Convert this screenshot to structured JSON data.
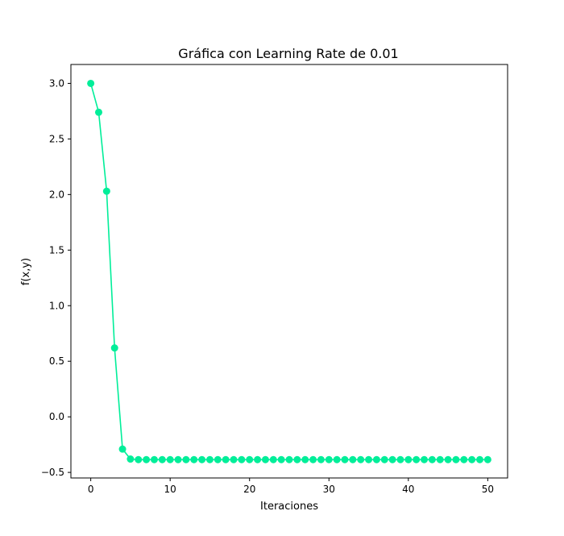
{
  "chart_data": {
    "type": "line",
    "title": "Gráfica con Learning Rate de 0.01",
    "xlabel": "Iteraciones",
    "ylabel": "f(x,y)",
    "xlim": [
      -2.5,
      52.5
    ],
    "ylim": [
      -0.55,
      3.17
    ],
    "xticks": [
      0,
      10,
      20,
      30,
      40,
      50
    ],
    "xtick_labels": [
      "0",
      "10",
      "20",
      "30",
      "40",
      "50"
    ],
    "yticks": [
      -0.5,
      0.0,
      0.5,
      1.0,
      1.5,
      2.0,
      2.5,
      3.0
    ],
    "ytick_labels": [
      "−0.5",
      "0.0",
      "0.5",
      "1.0",
      "1.5",
      "2.0",
      "2.5",
      "3.0"
    ],
    "grid": false,
    "legend": "none",
    "series": [
      {
        "color": "#00ee99",
        "marker": "circle",
        "x": [
          0,
          1,
          2,
          3,
          4,
          5,
          6,
          7,
          8,
          9,
          10,
          11,
          12,
          13,
          14,
          15,
          16,
          17,
          18,
          19,
          20,
          21,
          22,
          23,
          24,
          25,
          26,
          27,
          28,
          29,
          30,
          31,
          32,
          33,
          34,
          35,
          36,
          37,
          38,
          39,
          40,
          41,
          42,
          43,
          44,
          45,
          46,
          47,
          48,
          49,
          50
        ],
        "y": [
          3.0,
          2.74,
          2.03,
          0.62,
          -0.29,
          -0.38,
          -0.385,
          -0.385,
          -0.385,
          -0.385,
          -0.385,
          -0.385,
          -0.385,
          -0.385,
          -0.385,
          -0.385,
          -0.385,
          -0.385,
          -0.385,
          -0.385,
          -0.385,
          -0.385,
          -0.385,
          -0.385,
          -0.385,
          -0.385,
          -0.385,
          -0.385,
          -0.385,
          -0.385,
          -0.385,
          -0.385,
          -0.385,
          -0.385,
          -0.385,
          -0.385,
          -0.385,
          -0.385,
          -0.385,
          -0.385,
          -0.385,
          -0.385,
          -0.385,
          -0.385,
          -0.385,
          -0.385,
          -0.385,
          -0.385,
          -0.385,
          -0.385,
          -0.385
        ]
      }
    ]
  }
}
